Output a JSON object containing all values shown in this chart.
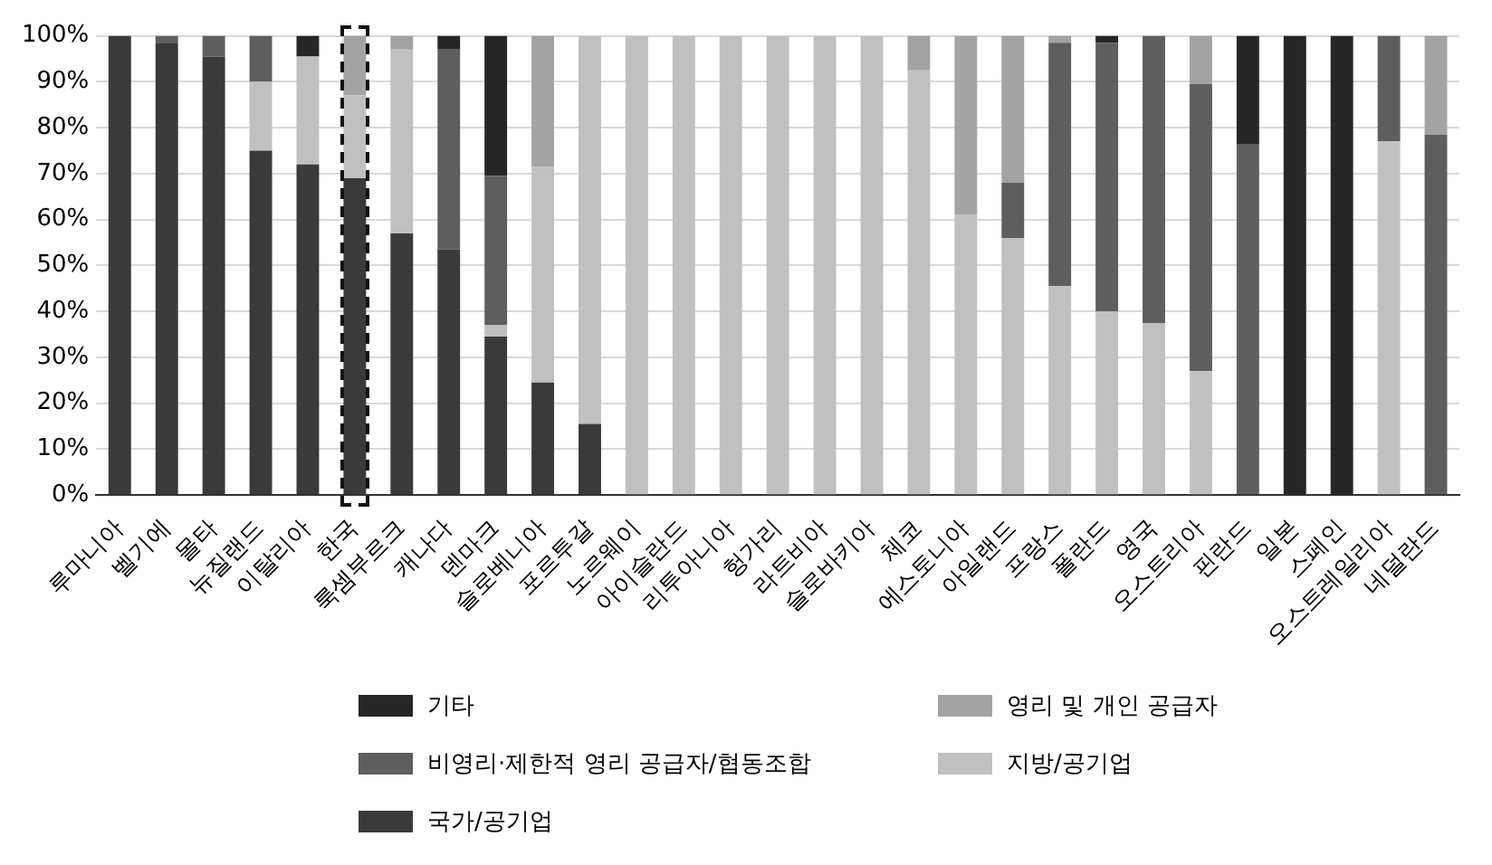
{
  "chart_data": {
    "type": "bar",
    "stacked": true,
    "categories": [
      "루마니아",
      "벨기에",
      "몰타",
      "뉴질랜드",
      "이탈리아",
      "한국",
      "룩셈부르크",
      "캐나다",
      "덴마크",
      "슬로베니아",
      "포르투갈",
      "노르웨이",
      "아이슬란드",
      "리투아니아",
      "헝가리",
      "라트비아",
      "슬로바키아",
      "체코",
      "에스토니아",
      "아일랜드",
      "프랑스",
      "폴란드",
      "영국",
      "오스트리아",
      "핀란드",
      "일본",
      "스페인",
      "오스트레일리아",
      "네덜란드"
    ],
    "series": [
      {
        "name": "국가/공기업",
        "color": "#3a3a3a",
        "values": [
          100,
          98.5,
          95.5,
          75,
          72,
          69,
          57,
          53.5,
          34.5,
          24.5,
          15.5,
          0,
          0,
          0,
          0,
          0,
          0,
          0,
          0,
          0,
          0,
          0,
          0,
          0,
          0,
          0,
          0,
          0,
          0
        ]
      },
      {
        "name": "지방/공기업",
        "color": "#c0c0c0",
        "values": [
          0,
          0,
          0,
          15,
          23.5,
          18,
          40,
          0,
          2.5,
          47,
          84.5,
          100,
          100,
          100,
          100,
          100,
          100,
          92.5,
          61,
          56,
          45.5,
          40,
          37.5,
          27,
          0,
          0,
          0,
          77,
          0
        ]
      },
      {
        "name": "비영리·제한적 영리 공급자/협동조합",
        "color": "#5e5e5e",
        "values": [
          0,
          1.5,
          4.5,
          10,
          0,
          0,
          0,
          43.5,
          32.5,
          0,
          0,
          0,
          0,
          0,
          0,
          0,
          0,
          0,
          0,
          12,
          53,
          58.5,
          62.5,
          62.5,
          76.5,
          0,
          0,
          23,
          78.5
        ]
      },
      {
        "name": "영리 및 개인 공급자",
        "color": "#a3a3a3",
        "values": [
          0,
          0,
          0,
          0,
          0,
          13,
          3,
          0,
          0,
          28.5,
          0,
          0,
          0,
          0,
          0,
          0,
          0,
          7.5,
          39,
          32,
          1.5,
          0,
          0,
          10.5,
          0,
          0,
          0,
          0,
          21.5
        ]
      },
      {
        "name": "기타",
        "color": "#262626",
        "values": [
          0,
          0,
          0,
          0,
          4.5,
          0,
          0,
          3,
          30.5,
          0,
          0,
          0,
          0,
          0,
          0,
          0,
          0,
          0,
          0,
          0,
          0,
          1.5,
          0,
          0,
          23.5,
          100,
          100,
          0,
          0
        ]
      }
    ],
    "ylim": [
      0,
      100
    ],
    "yticks": [
      {
        "value": 0,
        "label": "0%"
      },
      {
        "value": 10,
        "label": "10%"
      },
      {
        "value": 20,
        "label": "20%"
      },
      {
        "value": 30,
        "label": "30%"
      },
      {
        "value": 40,
        "label": "40%"
      },
      {
        "value": 50,
        "label": "50%"
      },
      {
        "value": 60,
        "label": "60%"
      },
      {
        "value": 70,
        "label": "70%"
      },
      {
        "value": 80,
        "label": "80%"
      },
      {
        "value": 90,
        "label": "90%"
      },
      {
        "value": 100,
        "label": "100%"
      }
    ],
    "grid": "y",
    "legend": "bottom"
  }
}
